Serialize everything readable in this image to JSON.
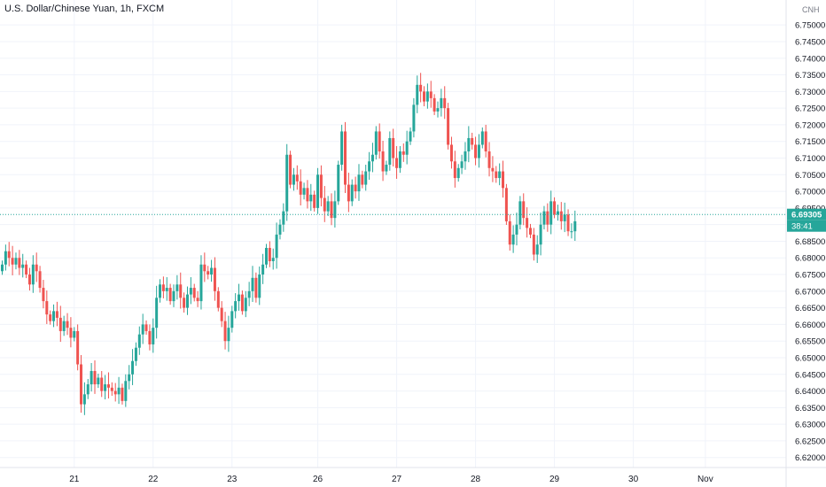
{
  "header": {
    "title": "U.S. Dollar/Chinese Yuan, 1h, FXCM"
  },
  "price_axis": {
    "currency": "CNH",
    "last_price_label": "6.69305",
    "countdown_label": "38:41",
    "last_price_color": "#26a69a"
  },
  "colors": {
    "up": "#26a69a",
    "down": "#ef5350",
    "grid": "#f0f3fa",
    "axis_text": "#131722"
  },
  "chart_data": {
    "type": "candlestick",
    "title": "U.S. Dollar/Chinese Yuan, 1h, FXCM",
    "ylim": [
      6.617,
      6.7575
    ],
    "y_ticks": [
      6.62,
      6.625,
      6.63,
      6.635,
      6.64,
      6.645,
      6.65,
      6.655,
      6.66,
      6.665,
      6.67,
      6.675,
      6.68,
      6.685,
      6.69,
      6.695,
      6.7,
      6.705,
      6.71,
      6.715,
      6.72,
      6.725,
      6.73,
      6.735,
      6.74,
      6.745,
      6.75
    ],
    "y_tick_labels": [
      "6.62000",
      "6.62500",
      "6.63000",
      "6.63500",
      "6.64000",
      "6.64500",
      "6.65000",
      "6.65500",
      "6.66000",
      "6.66500",
      "6.67000",
      "6.67500",
      "6.68000",
      "6.68500",
      "6.69000",
      "6.69500",
      "6.70000",
      "6.70500",
      "6.71000",
      "6.71500",
      "6.72000",
      "6.72500",
      "6.73000",
      "6.73500",
      "6.74000",
      "6.74500",
      "6.75000"
    ],
    "x_ticks": [
      {
        "label": "21",
        "index": 21
      },
      {
        "label": "22",
        "index": 44
      },
      {
        "label": "23",
        "index": 67
      },
      {
        "label": "26",
        "index": 92
      },
      {
        "label": "27",
        "index": 115
      },
      {
        "label": "28",
        "index": 138
      },
      {
        "label": "29",
        "index": 161
      },
      {
        "label": "30",
        "index": 184
      },
      {
        "label": "Nov",
        "index": 205
      }
    ],
    "last_price": 6.69305,
    "grid": true,
    "closes": [
      6.678,
      6.682,
      6.68,
      6.678,
      6.68,
      6.677,
      6.678,
      6.675,
      6.672,
      6.678,
      6.676,
      6.671,
      6.667,
      6.663,
      6.661,
      6.664,
      6.662,
      6.658,
      6.661,
      6.659,
      6.656,
      6.658,
      6.648,
      6.636,
      6.639,
      6.642,
      6.646,
      6.642,
      6.644,
      6.64,
      6.642,
      6.641,
      6.64,
      6.639,
      6.641,
      6.637,
      6.643,
      6.645,
      6.649,
      6.653,
      6.657,
      6.66,
      6.658,
      6.654,
      6.659,
      6.668,
      6.672,
      6.67,
      6.671,
      6.667,
      6.67,
      6.672,
      6.668,
      6.665,
      6.669,
      6.671,
      6.668,
      6.667,
      6.678,
      6.676,
      6.675,
      6.677,
      6.67,
      6.665,
      6.661,
      6.655,
      6.659,
      6.664,
      6.667,
      6.669,
      6.664,
      6.668,
      6.67,
      6.674,
      6.668,
      6.675,
      6.678,
      6.683,
      6.679,
      6.68,
      6.687,
      6.69,
      6.694,
      6.711,
      6.702,
      6.705,
      6.703,
      6.699,
      6.701,
      6.697,
      6.699,
      6.695,
      6.705,
      6.698,
      6.694,
      6.697,
      6.692,
      6.697,
      6.708,
      6.718,
      6.702,
      6.697,
      6.702,
      6.7,
      6.705,
      6.702,
      6.706,
      6.709,
      6.711,
      6.718,
      6.712,
      6.706,
      6.708,
      6.716,
      6.71,
      6.707,
      6.712,
      6.711,
      6.715,
      6.718,
      6.726,
      6.732,
      6.73,
      6.727,
      6.73,
      6.728,
      6.724,
      6.725,
      6.728,
      6.725,
      6.714,
      6.709,
      6.704,
      6.707,
      6.709,
      6.712,
      6.716,
      6.714,
      6.71,
      6.714,
      6.718,
      6.712,
      6.707,
      6.706,
      6.704,
      6.706,
      6.701,
      6.691,
      6.684,
      6.687,
      6.69,
      6.697,
      6.692,
      6.689,
      6.687,
      6.681,
      6.684,
      6.69,
      6.694,
      6.69,
      6.697,
      6.693,
      6.694,
      6.691,
      6.693,
      6.688,
      6.688,
      6.691
    ]
  }
}
